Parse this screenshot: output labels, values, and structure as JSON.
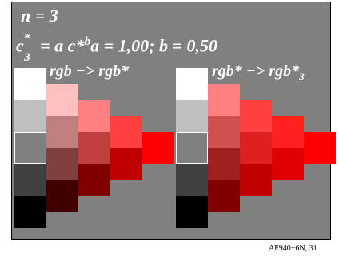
{
  "title": {
    "line1": "n = 3",
    "line2_prefix": "c",
    "line2_sup": "*",
    "line2_sub": "3",
    "line2_rest": " = a c*",
    "line2_b": "b",
    "line2_tail": "a = 1,00; b = 0,50"
  },
  "left_label": "rgb −> rgb*",
  "right_label_main": "rgb* −> rgb*",
  "right_label_sub": "3",
  "footer": "AF940−6N, 31",
  "colors": {
    "background": "#808080",
    "grays": [
      "#ffffff",
      "#c0c0c0",
      "#808080",
      "#404040",
      "#000000"
    ],
    "left_tints": [
      "#ffc0c0",
      "#ff8080",
      "#ff4040",
      "#ff0000"
    ],
    "left_tones": [
      "#c08080",
      "#c04040",
      "#c00000"
    ],
    "left_shades": [
      "#804040",
      "#800000"
    ],
    "left_dark": [
      "#400000"
    ],
    "right_tints": [
      "#ff8080",
      "#ff4040",
      "#ff2020",
      "#ff0000"
    ],
    "right_tones": [
      "#d05050",
      "#e02020",
      "#e00000"
    ],
    "right_shades": [
      "#a02020",
      "#c00000"
    ],
    "right_dark": [
      "#800000"
    ]
  }
}
